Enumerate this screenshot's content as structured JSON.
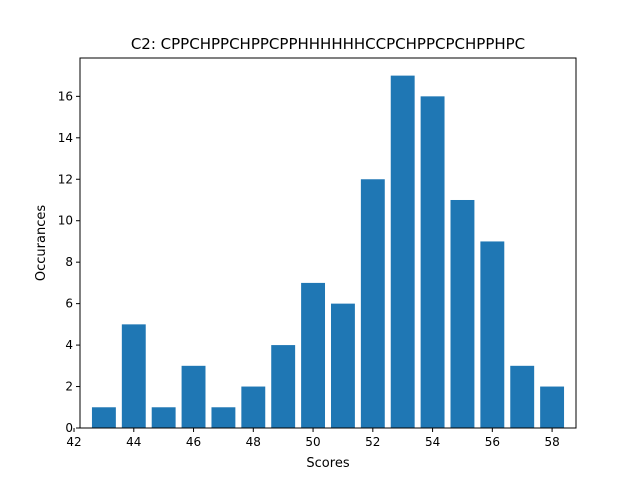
{
  "chart_data": {
    "type": "bar",
    "title": "C2: CPPCHPPCHPPCPPHHHHHHCCPCHPPCPCHPPHPC",
    "xlabel": "Scores",
    "ylabel": "Occurances",
    "x": [
      43,
      44,
      45,
      46,
      47,
      48,
      49,
      50,
      51,
      52,
      53,
      54,
      55,
      56,
      57,
      58
    ],
    "values": [
      1,
      5,
      1,
      3,
      1,
      2,
      4,
      7,
      6,
      12,
      17,
      16,
      11,
      9,
      3,
      2
    ],
    "xlim": [
      42.2,
      58.8
    ],
    "ylim": [
      0,
      17.85
    ],
    "xticks": [
      42,
      44,
      46,
      48,
      50,
      52,
      54,
      56,
      58
    ],
    "yticks": [
      0,
      2,
      4,
      6,
      8,
      10,
      12,
      14,
      16
    ],
    "bar_width": 0.8,
    "color": "#1f77b4",
    "grid": false,
    "legend": "none"
  }
}
